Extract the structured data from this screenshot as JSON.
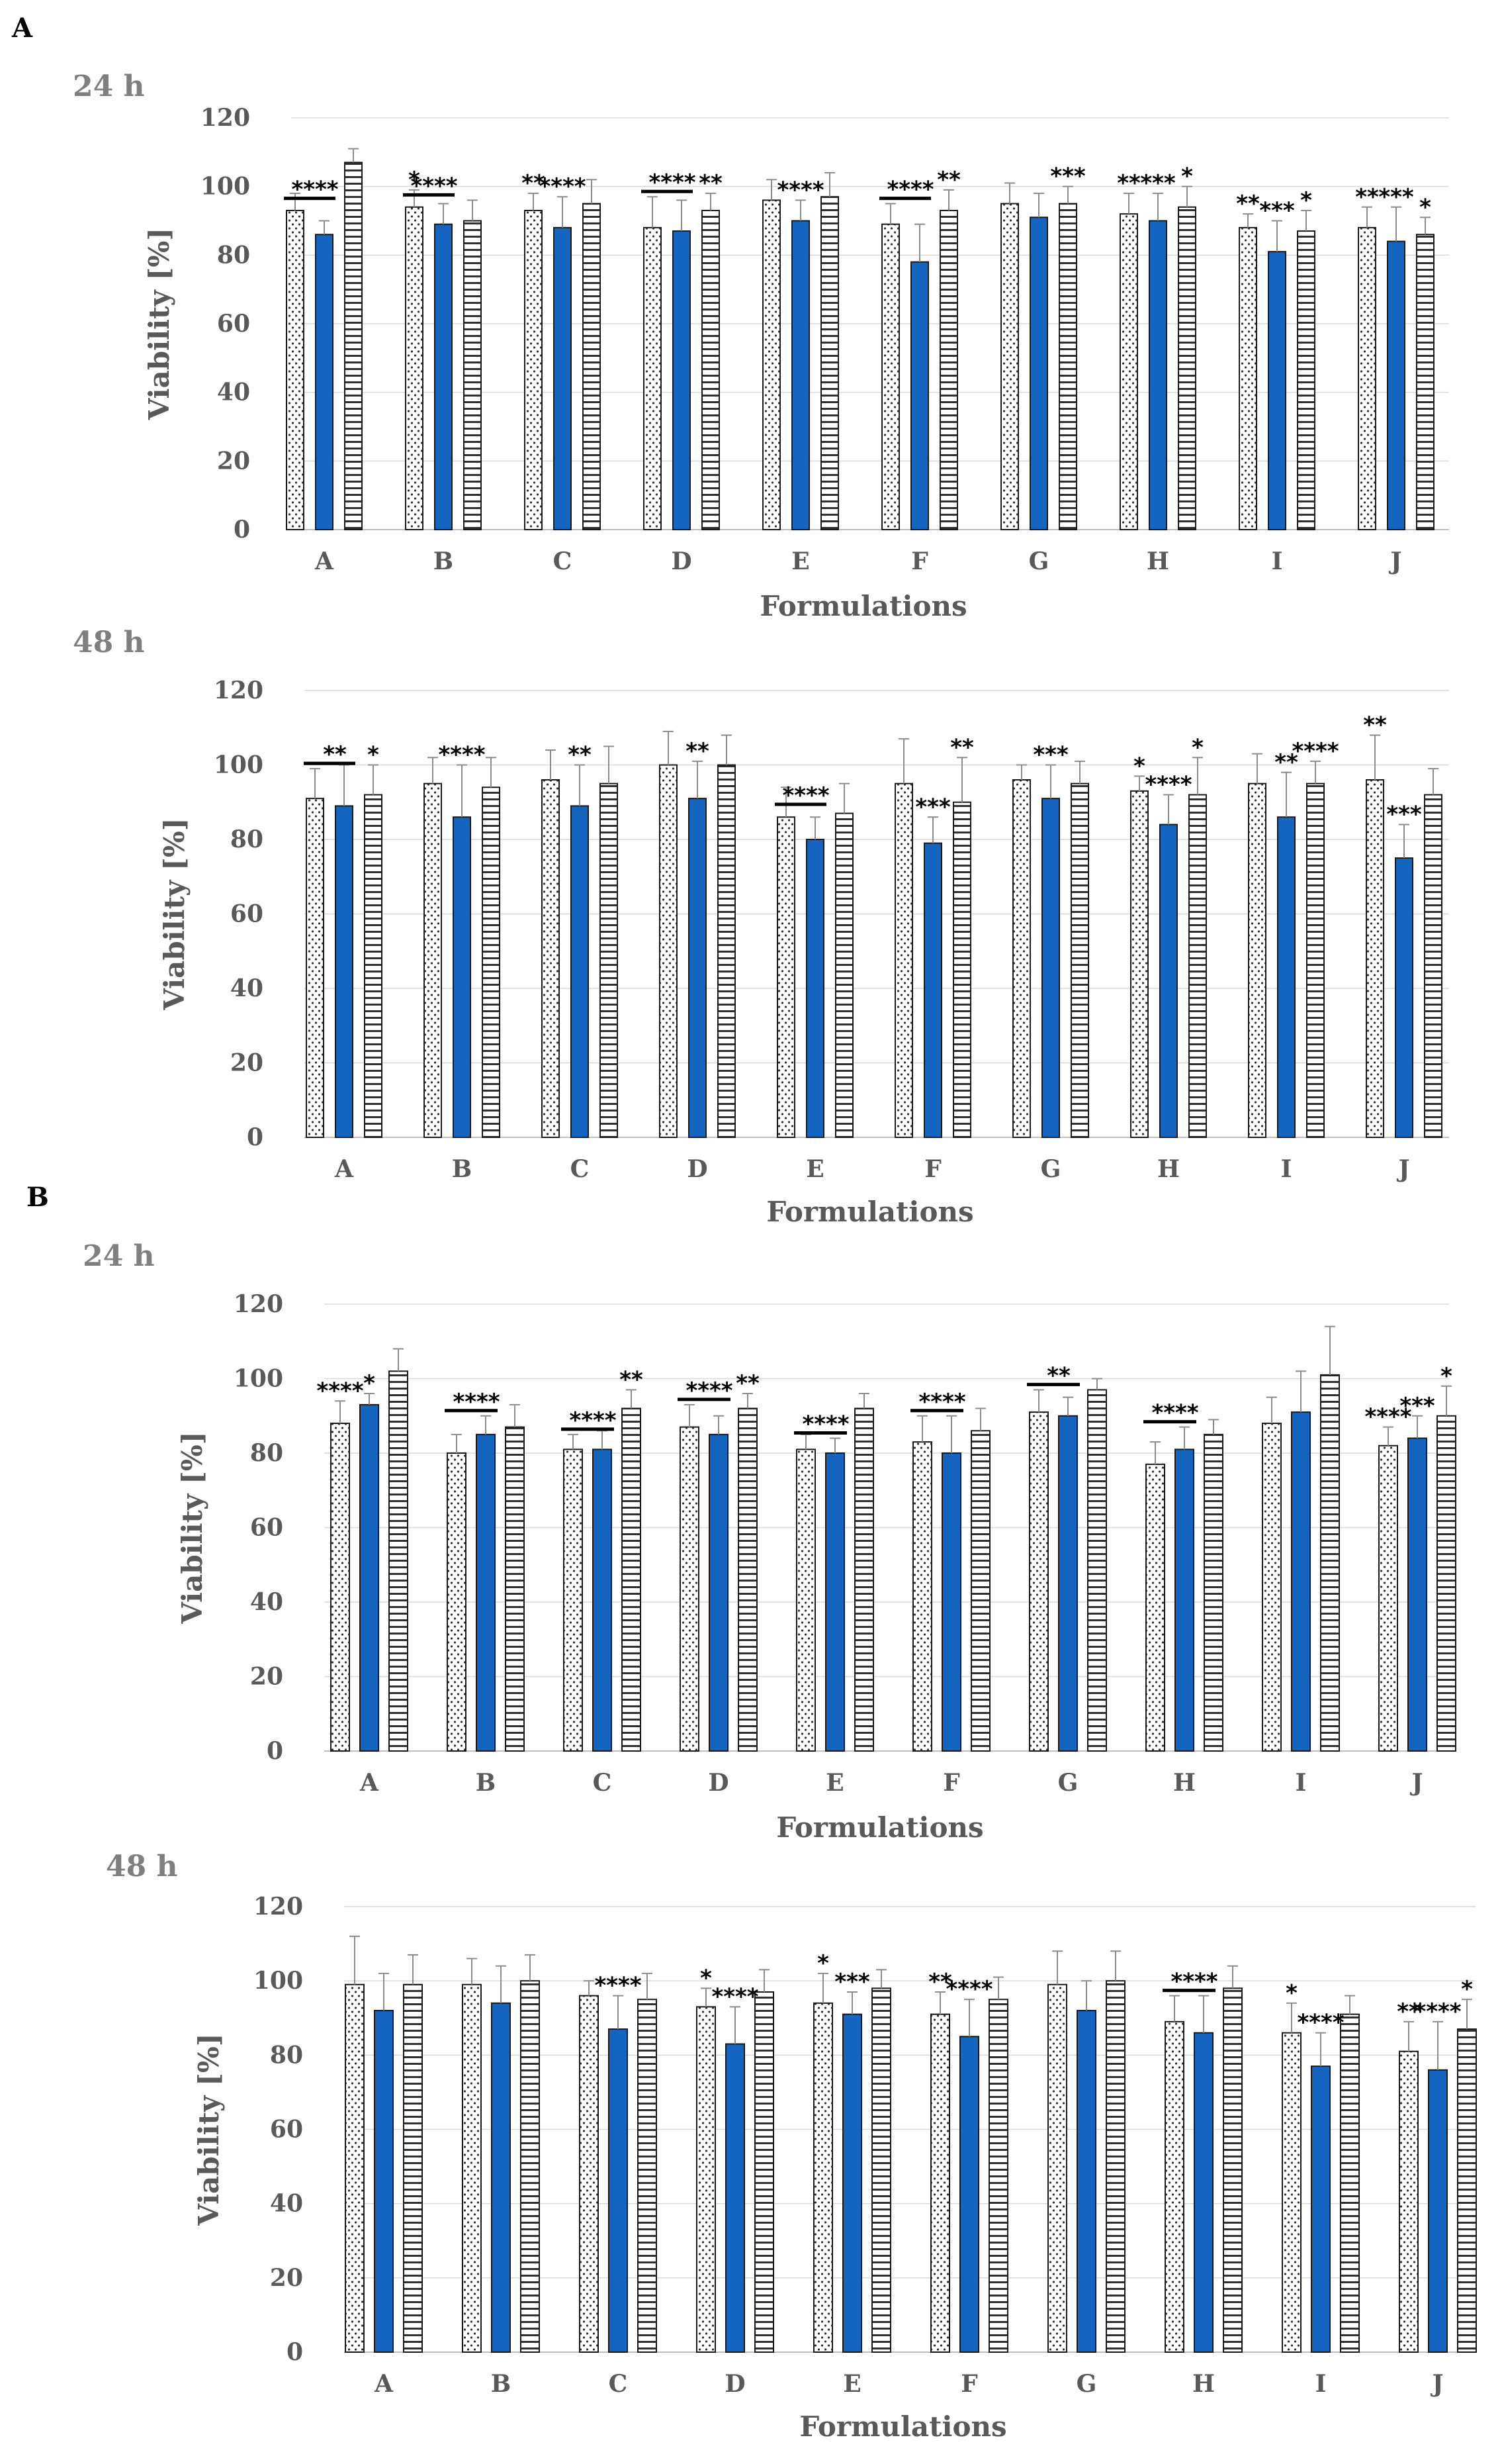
{
  "panel_labels": [
    "A",
    "B"
  ],
  "chart_data": [
    {
      "type": "bar",
      "panel": "A",
      "title": "24 h",
      "xlabel": "Formulations",
      "ylabel": "Viability [%]",
      "ylim": [
        0,
        120
      ],
      "yticks": [
        "0",
        "20",
        "40",
        "60",
        "80",
        "100",
        "120"
      ],
      "categories": [
        "A",
        "B",
        "C",
        "D",
        "E",
        "F",
        "G",
        "H",
        "I",
        "J"
      ],
      "series": [
        {
          "name": "series 1 (dotted)",
          "pattern": "dots",
          "values": [
            93,
            94,
            93,
            88,
            96,
            89,
            95,
            92,
            88,
            88
          ],
          "errors": [
            5,
            5,
            5,
            9,
            6,
            6,
            6,
            6,
            4,
            6
          ]
        },
        {
          "name": "series 2 (solid)",
          "pattern": "solid",
          "color": "#1565c0",
          "values": [
            86,
            89,
            88,
            87,
            90,
            78,
            91,
            90,
            81,
            84
          ],
          "errors": [
            4,
            6,
            9,
            9,
            6,
            11,
            7,
            8,
            9,
            10
          ]
        },
        {
          "name": "series 3 (horizontal lines)",
          "pattern": "hlines",
          "values": [
            107,
            90,
            95,
            93,
            97,
            93,
            95,
            94,
            87,
            86
          ],
          "errors": [
            4,
            6,
            7,
            5,
            7,
            6,
            5,
            6,
            6,
            5
          ]
        }
      ],
      "annotations": [
        {
          "category": "A",
          "series": 1,
          "text": "****",
          "bracket": true
        },
        {
          "category": "B",
          "series": 0,
          "text": "*"
        },
        {
          "category": "B",
          "series": 1,
          "text": "****",
          "bracket": true
        },
        {
          "category": "C",
          "series": 0,
          "text": "**"
        },
        {
          "category": "C",
          "series": 1,
          "text": "****"
        },
        {
          "category": "D",
          "series": 0,
          "text": "****",
          "bracket": true
        },
        {
          "category": "D",
          "series": 2,
          "text": "**"
        },
        {
          "category": "E",
          "series": 1,
          "text": "****"
        },
        {
          "category": "F",
          "series": 0,
          "text": "****",
          "bracket": true
        },
        {
          "category": "F",
          "series": 2,
          "text": "**"
        },
        {
          "category": "G",
          "series": 2,
          "text": "***"
        },
        {
          "category": "H",
          "series": 0,
          "text": "**"
        },
        {
          "category": "H",
          "series": 1,
          "text": "***"
        },
        {
          "category": "H",
          "series": 2,
          "text": "*"
        },
        {
          "category": "I",
          "series": 0,
          "text": "**"
        },
        {
          "category": "I",
          "series": 1,
          "text": "***"
        },
        {
          "category": "I",
          "series": 2,
          "text": "*"
        },
        {
          "category": "J",
          "series": 0,
          "text": "**"
        },
        {
          "category": "J",
          "series": 1,
          "text": "***"
        },
        {
          "category": "J",
          "series": 2,
          "text": "*"
        }
      ]
    },
    {
      "type": "bar",
      "panel": "A",
      "title": "48 h",
      "xlabel": "Formulations",
      "ylabel": "Viability [%]",
      "ylim": [
        0,
        120
      ],
      "yticks": [
        "0",
        "20",
        "40",
        "60",
        "80",
        "100",
        "120"
      ],
      "categories": [
        "A",
        "B",
        "C",
        "D",
        "E",
        "F",
        "G",
        "H",
        "I",
        "J"
      ],
      "series": [
        {
          "name": "series 1 (dotted)",
          "pattern": "dots",
          "values": [
            91,
            95,
            96,
            100,
            86,
            95,
            96,
            93,
            95,
            96
          ],
          "errors": [
            8,
            7,
            8,
            9,
            8,
            12,
            4,
            4,
            8,
            12
          ]
        },
        {
          "name": "series 2 (solid)",
          "pattern": "solid",
          "color": "#1565c0",
          "values": [
            89,
            86,
            89,
            91,
            80,
            79,
            91,
            84,
            86,
            75
          ],
          "errors": [
            11,
            14,
            11,
            10,
            6,
            7,
            9,
            8,
            12,
            9
          ]
        },
        {
          "name": "series 3 (horizontal lines)",
          "pattern": "hlines",
          "values": [
            92,
            94,
            95,
            100,
            87,
            90,
            95,
            92,
            95,
            92
          ],
          "errors": [
            8,
            8,
            10,
            8,
            8,
            12,
            6,
            10,
            6,
            7
          ]
        }
      ],
      "annotations": [
        {
          "category": "A",
          "series": 0,
          "text": "**",
          "bracket": true
        },
        {
          "category": "A",
          "series": 2,
          "text": "*"
        },
        {
          "category": "B",
          "series": 1,
          "text": "****"
        },
        {
          "category": "C",
          "series": 1,
          "text": "**"
        },
        {
          "category": "D",
          "series": 1,
          "text": "**"
        },
        {
          "category": "E",
          "series": 1,
          "text": "****",
          "bracket": true
        },
        {
          "category": "F",
          "series": 1,
          "text": "***"
        },
        {
          "category": "F",
          "series": 2,
          "text": "**"
        },
        {
          "category": "G",
          "series": 1,
          "text": "***"
        },
        {
          "category": "H",
          "series": 0,
          "text": "*"
        },
        {
          "category": "H",
          "series": 1,
          "text": "****"
        },
        {
          "category": "H",
          "series": 2,
          "text": "*"
        },
        {
          "category": "I",
          "series": 1,
          "text": "**"
        },
        {
          "category": "I",
          "series": 2,
          "text": "****"
        },
        {
          "category": "J",
          "series": 0,
          "text": "**"
        },
        {
          "category": "J",
          "series": 1,
          "text": "***"
        }
      ]
    },
    {
      "type": "bar",
      "panel": "B",
      "title": "24 h",
      "xlabel": "Formulations",
      "ylabel": "Viability [%]",
      "ylim": [
        0,
        120
      ],
      "yticks": [
        "0",
        "20",
        "40",
        "60",
        "80",
        "100",
        "120"
      ],
      "categories": [
        "A",
        "B",
        "C",
        "D",
        "E",
        "F",
        "G",
        "H",
        "I",
        "J"
      ],
      "series": [
        {
          "name": "series 1 (dotted)",
          "pattern": "dots",
          "values": [
            88,
            80,
            81,
            87,
            81,
            83,
            91,
            77,
            88,
            82
          ],
          "errors": [
            6,
            5,
            4,
            6,
            4,
            7,
            6,
            6,
            7,
            5
          ]
        },
        {
          "name": "series 2 (solid)",
          "pattern": "solid",
          "color": "#1565c0",
          "values": [
            93,
            85,
            81,
            85,
            80,
            80,
            90,
            81,
            91,
            84
          ],
          "errors": [
            3,
            5,
            5,
            5,
            4,
            10,
            5,
            6,
            11,
            6
          ]
        },
        {
          "name": "series 3 (horizontal lines)",
          "pattern": "hlines",
          "values": [
            102,
            87,
            92,
            92,
            92,
            86,
            97,
            85,
            101,
            90
          ],
          "errors": [
            6,
            6,
            5,
            4,
            4,
            6,
            3,
            4,
            13,
            8
          ]
        }
      ],
      "annotations": [
        {
          "category": "A",
          "series": 0,
          "text": "****"
        },
        {
          "category": "A",
          "series": 1,
          "text": "*"
        },
        {
          "category": "B",
          "series": 1,
          "text": "****",
          "bracket": true
        },
        {
          "category": "C",
          "series": 0,
          "text": "****",
          "bracket": true
        },
        {
          "category": "C",
          "series": 2,
          "text": "**"
        },
        {
          "category": "D",
          "series": 0,
          "text": "****",
          "bracket": true
        },
        {
          "category": "D",
          "series": 2,
          "text": "**"
        },
        {
          "category": "E",
          "series": 1,
          "text": "****",
          "bracket": true
        },
        {
          "category": "F",
          "series": 1,
          "text": "****",
          "bracket": true
        },
        {
          "category": "G",
          "series": 0,
          "text": "**",
          "bracket": true
        },
        {
          "category": "H",
          "series": 1,
          "text": "****",
          "bracket": true
        },
        {
          "category": "J",
          "series": 0,
          "text": "****"
        },
        {
          "category": "J",
          "series": 1,
          "text": "***"
        },
        {
          "category": "J",
          "series": 2,
          "text": "*"
        }
      ]
    },
    {
      "type": "bar",
      "panel": "B",
      "title": "48 h",
      "xlabel": "Formulations",
      "ylabel": "Viability [%]",
      "ylim": [
        0,
        120
      ],
      "yticks": [
        "0",
        "20",
        "40",
        "60",
        "80",
        "100",
        "120"
      ],
      "categories": [
        "A",
        "B",
        "C",
        "D",
        "E",
        "F",
        "G",
        "H",
        "I",
        "J"
      ],
      "series": [
        {
          "name": "series 1 (dotted)",
          "pattern": "dots",
          "values": [
            99,
            99,
            96,
            93,
            94,
            91,
            99,
            89,
            86,
            81
          ],
          "errors": [
            13,
            7,
            4,
            5,
            8,
            6,
            9,
            7,
            8,
            8
          ]
        },
        {
          "name": "series 2 (solid)",
          "pattern": "solid",
          "color": "#1565c0",
          "values": [
            92,
            94,
            87,
            83,
            91,
            85,
            92,
            86,
            77,
            76
          ],
          "errors": [
            10,
            10,
            9,
            10,
            6,
            10,
            8,
            10,
            9,
            13
          ]
        },
        {
          "name": "series 3 (horizontal lines)",
          "pattern": "hlines",
          "values": [
            99,
            100,
            95,
            97,
            98,
            95,
            100,
            98,
            91,
            87
          ],
          "errors": [
            8,
            7,
            7,
            6,
            5,
            6,
            8,
            6,
            5,
            8
          ]
        }
      ],
      "annotations": [
        {
          "category": "C",
          "series": 1,
          "text": "****"
        },
        {
          "category": "D",
          "series": 0,
          "text": "*"
        },
        {
          "category": "D",
          "series": 1,
          "text": "****"
        },
        {
          "category": "E",
          "series": 0,
          "text": "*"
        },
        {
          "category": "E",
          "series": 1,
          "text": "***"
        },
        {
          "category": "F",
          "series": 0,
          "text": "**"
        },
        {
          "category": "F",
          "series": 1,
          "text": "****"
        },
        {
          "category": "H",
          "series": 1,
          "text": "****",
          "bracket": true
        },
        {
          "category": "I",
          "series": 0,
          "text": "*"
        },
        {
          "category": "I",
          "series": 1,
          "text": "****"
        },
        {
          "category": "J",
          "series": 0,
          "text": "**"
        },
        {
          "category": "J",
          "series": 1,
          "text": "****"
        },
        {
          "category": "J",
          "series": 2,
          "text": "*"
        }
      ]
    }
  ]
}
